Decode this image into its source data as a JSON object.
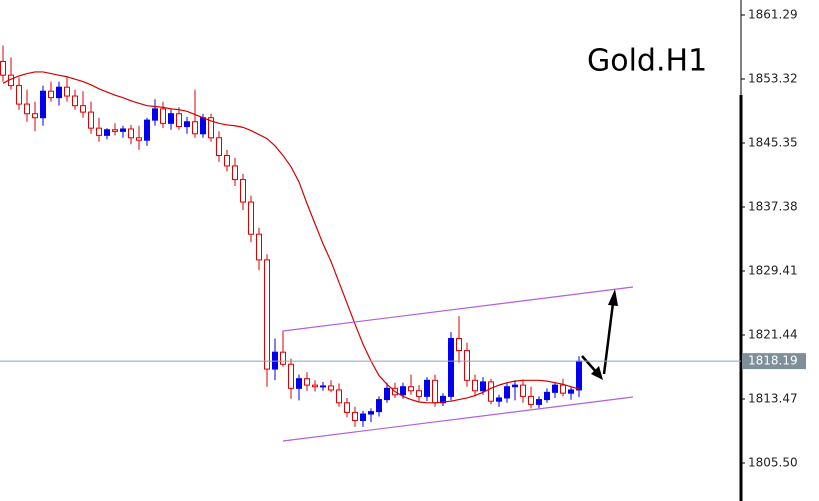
{
  "chart_data": {
    "type": "candlestick",
    "title": "Gold.H1",
    "open": [
      1855.5,
      1853.8,
      1852.5,
      1850.2,
      1849.0,
      1848.5,
      1851.8,
      1851.0,
      1852.3,
      1851.2,
      1850.0,
      1849.2,
      1847.2,
      1846.3,
      1847.0,
      1846.8,
      1847.1,
      1846.0,
      1845.7,
      1848.2,
      1849.6,
      1847.8,
      1849.0,
      1847.4,
      1848.0,
      1846.5,
      1848.5,
      1846.0,
      1843.8,
      1842.5,
      1840.8,
      1838.0,
      1834.0,
      1830.8,
      1817.2,
      1819.3,
      1817.8,
      1814.8,
      1816.0,
      1815.2,
      1815.0,
      1815.1,
      1814.6,
      1813.0,
      1811.8,
      1810.8,
      1811.6,
      1811.9,
      1813.4,
      1814.8,
      1814.0,
      1815.0,
      1814.5,
      1813.8,
      1815.8,
      1813.0,
      1813.8,
      1821.0,
      1819.5,
      1815.8,
      1814.5,
      1815.6,
      1813.2,
      1813.6,
      1815.0,
      1815.2,
      1813.8,
      1812.8,
      1813.4,
      1814.3,
      1815.2,
      1814.2,
      1814.6
    ],
    "high": [
      1857.5,
      1856.0,
      1853.5,
      1852.0,
      1850.5,
      1852.5,
      1853.0,
      1853.0,
      1853.5,
      1852.0,
      1851.8,
      1850.5,
      1848.5,
      1847.2,
      1847.8,
      1847.5,
      1847.6,
      1847.5,
      1848.5,
      1850.8,
      1850.5,
      1849.5,
      1849.8,
      1848.6,
      1852.0,
      1849.0,
      1849.0,
      1846.8,
      1844.5,
      1843.5,
      1841.5,
      1838.8,
      1834.8,
      1831.5,
      1821.0,
      1822.0,
      1818.5,
      1816.5,
      1816.8,
      1815.8,
      1815.6,
      1815.8,
      1815.4,
      1813.6,
      1812.5,
      1812.0,
      1812.3,
      1813.8,
      1815.5,
      1815.5,
      1815.5,
      1816.5,
      1815.2,
      1816.2,
      1816.5,
      1814.2,
      1821.8,
      1823.8,
      1820.5,
      1816.5,
      1816.2,
      1816.0,
      1814.0,
      1815.5,
      1815.8,
      1815.9,
      1815.0,
      1813.8,
      1814.8,
      1815.6,
      1816.0,
      1815.0,
      1818.8
    ],
    "low": [
      1853.0,
      1852.0,
      1849.5,
      1848.0,
      1846.8,
      1847.5,
      1850.5,
      1850.0,
      1850.5,
      1849.5,
      1848.5,
      1846.5,
      1845.5,
      1845.8,
      1846.3,
      1846.0,
      1845.2,
      1844.5,
      1845.0,
      1847.5,
      1847.2,
      1847.0,
      1847.0,
      1846.5,
      1846.0,
      1846.0,
      1845.5,
      1843.0,
      1841.8,
      1840.0,
      1837.0,
      1833.0,
      1829.5,
      1815.0,
      1815.8,
      1817.5,
      1813.5,
      1813.3,
      1814.5,
      1814.4,
      1814.5,
      1814.3,
      1812.5,
      1811.2,
      1810.0,
      1810.0,
      1810.6,
      1811.3,
      1813.0,
      1813.6,
      1813.5,
      1814.0,
      1813.2,
      1813.2,
      1812.5,
      1812.6,
      1813.3,
      1818.0,
      1815.0,
      1813.8,
      1814.0,
      1812.8,
      1812.5,
      1813.0,
      1813.3,
      1813.0,
      1812.3,
      1812.3,
      1813.0,
      1813.6,
      1813.8,
      1813.4,
      1813.7
    ],
    "close": [
      1853.8,
      1852.5,
      1850.2,
      1849.0,
      1848.5,
      1851.8,
      1851.0,
      1852.3,
      1851.2,
      1850.0,
      1849.2,
      1847.2,
      1846.3,
      1847.0,
      1846.8,
      1847.1,
      1846.0,
      1845.7,
      1848.2,
      1849.6,
      1847.8,
      1849.0,
      1847.4,
      1848.0,
      1846.5,
      1848.5,
      1846.0,
      1843.8,
      1842.5,
      1840.8,
      1838.0,
      1834.0,
      1830.8,
      1817.2,
      1819.3,
      1817.8,
      1814.8,
      1816.0,
      1815.2,
      1815.0,
      1815.1,
      1814.6,
      1813.0,
      1811.8,
      1810.8,
      1811.6,
      1811.9,
      1813.4,
      1814.8,
      1814.0,
      1815.0,
      1814.5,
      1813.8,
      1815.8,
      1813.0,
      1813.8,
      1821.0,
      1819.5,
      1815.8,
      1814.5,
      1815.6,
      1813.2,
      1813.6,
      1815.0,
      1815.2,
      1813.8,
      1812.8,
      1813.4,
      1814.3,
      1815.2,
      1814.2,
      1814.6,
      1818.19
    ],
    "up_color": "#0000ee",
    "down_color": "#e00000",
    "ma": {
      "color": "#d40000",
      "values": [
        1852.8,
        1853.3,
        1853.7,
        1854.0,
        1854.2,
        1854.2,
        1854.0,
        1853.8,
        1853.6,
        1853.3,
        1853.0,
        1852.6,
        1852.1,
        1851.7,
        1851.3,
        1851.0,
        1850.6,
        1850.3,
        1850.0,
        1849.9,
        1849.8,
        1849.6,
        1849.5,
        1849.3,
        1848.9,
        1848.5,
        1848.1,
        1847.8,
        1847.6,
        1847.5,
        1847.3,
        1846.9,
        1846.4,
        1845.9,
        1845.0,
        1843.8,
        1842.4,
        1840.5,
        1837.8,
        1835.3,
        1832.8,
        1830.6,
        1828.0,
        1825.4,
        1822.8,
        1820.3,
        1818.2,
        1816.4,
        1815.3,
        1814.4,
        1813.8,
        1813.4,
        1813.1,
        1813.0,
        1813.0,
        1813.1,
        1813.2,
        1813.4,
        1813.6,
        1813.9,
        1814.3,
        1814.8,
        1815.2,
        1815.5,
        1815.7,
        1815.8,
        1815.8,
        1815.8,
        1815.7,
        1815.5,
        1815.3,
        1815.0,
        1814.7
      ]
    },
    "current_price": 1818.19,
    "ylim": [
      1800.77,
      1863.16
    ],
    "yticks": [
      {
        "value": 1805.5,
        "label": "1805.50"
      },
      1813.47,
      1821.44,
      1829.41,
      1837.38,
      1845.35,
      1853.32,
      1861.29
    ]
  }
}
